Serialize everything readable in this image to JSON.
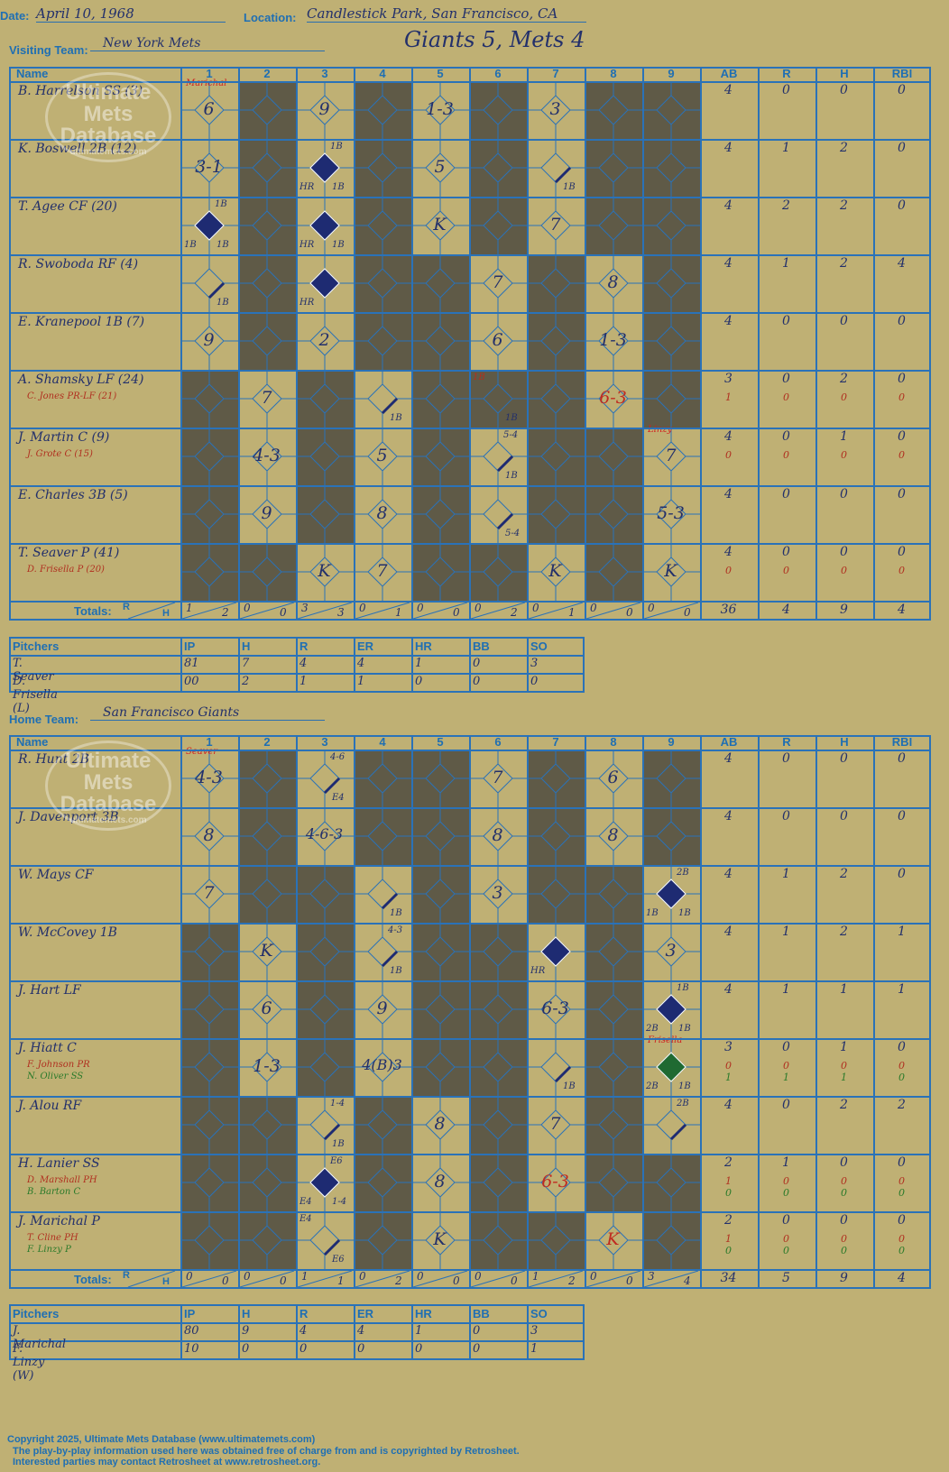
{
  "header": {
    "date_label": "Date:",
    "date_value": "April 10, 1968",
    "location_label": "Location:",
    "location_value": "Candlestick Park, San Francisco, CA",
    "visiting_label": "Visiting Team:",
    "visiting_value": "New York Mets",
    "score_title": "Giants 5, Mets 4",
    "home_label": "Home Team:",
    "home_value": "San Francisco Giants"
  },
  "columns": {
    "name": "Name",
    "innings": [
      "1",
      "2",
      "3",
      "4",
      "5",
      "6",
      "7",
      "8",
      "9"
    ],
    "stats": [
      "AB",
      "R",
      "H",
      "RBI"
    ],
    "totals_label": "Totals:",
    "r_label": "R",
    "h_label": "H"
  },
  "watermark": {
    "line1": "Ultimate",
    "line2": "Mets",
    "line3": "Database",
    "url": "ultimatemets.com"
  },
  "visitors": {
    "players": [
      {
        "name": "B. Harrelson SS (3)",
        "subs": [],
        "stats": [
          "4",
          "0",
          "0",
          "0"
        ]
      },
      {
        "name": "K. Boswell 2B (12)",
        "subs": [],
        "stats": [
          "4",
          "1",
          "2",
          "0"
        ]
      },
      {
        "name": "T. Agee CF (20)",
        "subs": [],
        "stats": [
          "4",
          "2",
          "2",
          "0"
        ]
      },
      {
        "name": "R. Swoboda RF (4)",
        "subs": [],
        "stats": [
          "4",
          "1",
          "2",
          "4"
        ]
      },
      {
        "name": "E. Kranepool 1B (7)",
        "subs": [],
        "stats": [
          "4",
          "0",
          "0",
          "0"
        ]
      },
      {
        "name": "A. Shamsky LF (24)",
        "subs": [
          {
            "name": "C. Jones PR-LF (21)",
            "stats": [
              "1",
              "0",
              "0",
              "0"
            ],
            "color": "#b03020"
          }
        ],
        "stats": [
          "3",
          "0",
          "2",
          "0"
        ]
      },
      {
        "name": "J. Martin C (9)",
        "subs": [
          {
            "name": "J. Grote C (15)",
            "stats": [
              "0",
              "0",
              "0",
              "0"
            ],
            "color": "#b03020"
          }
        ],
        "stats": [
          "4",
          "0",
          "1",
          "0"
        ]
      },
      {
        "name": "E. Charles 3B (5)",
        "subs": [],
        "stats": [
          "4",
          "0",
          "0",
          "0"
        ]
      },
      {
        "name": "T. Seaver P (41)",
        "subs": [
          {
            "name": "D. Frisella P (20)",
            "stats": [
              "0",
              "0",
              "0",
              "0"
            ],
            "color": "#b03020"
          }
        ],
        "stats": [
          "4",
          "0",
          "0",
          "0"
        ]
      }
    ],
    "plays": [
      {
        "row": 0,
        "inn": 1,
        "text": "6"
      },
      {
        "row": 0,
        "inn": 3,
        "text": "9"
      },
      {
        "row": 0,
        "inn": 5,
        "text": "1-3"
      },
      {
        "row": 0,
        "inn": 7,
        "text": "3"
      },
      {
        "row": 1,
        "inn": 1,
        "text": "3-1"
      },
      {
        "row": 1,
        "inn": 5,
        "text": "5"
      },
      {
        "row": 2,
        "inn": 5,
        "text": "K"
      },
      {
        "row": 2,
        "inn": 7,
        "text": "7"
      },
      {
        "row": 3,
        "inn": 6,
        "text": "7"
      },
      {
        "row": 3,
        "inn": 8,
        "text": "8"
      },
      {
        "row": 4,
        "inn": 1,
        "text": "9"
      },
      {
        "row": 4,
        "inn": 3,
        "text": "2"
      },
      {
        "row": 4,
        "inn": 6,
        "text": "6"
      },
      {
        "row": 4,
        "inn": 8,
        "text": "1-3"
      },
      {
        "row": 5,
        "inn": 2,
        "text": "7"
      },
      {
        "row": 5,
        "inn": 8,
        "text": "6-3"
      },
      {
        "row": 6,
        "inn": 2,
        "text": "4-3"
      },
      {
        "row": 6,
        "inn": 4,
        "text": "5"
      },
      {
        "row": 6,
        "inn": 9,
        "text": "7"
      },
      {
        "row": 7,
        "inn": 2,
        "text": "9"
      },
      {
        "row": 7,
        "inn": 4,
        "text": "8"
      },
      {
        "row": 7,
        "inn": 9,
        "text": "5-3"
      },
      {
        "row": 8,
        "inn": 3,
        "text": "K"
      },
      {
        "row": 8,
        "inn": 4,
        "text": "7"
      },
      {
        "row": 8,
        "inn": 7,
        "text": "K"
      },
      {
        "row": 8,
        "inn": 9,
        "text": "K"
      }
    ],
    "runs": [
      {
        "row": 1,
        "inn": 3
      },
      {
        "row": 2,
        "inn": 1
      },
      {
        "row": 2,
        "inn": 3
      },
      {
        "row": 3,
        "inn": 3
      }
    ],
    "singles": [
      {
        "row": 1,
        "inn": 7
      },
      {
        "row": 3,
        "inn": 1
      },
      {
        "row": 5,
        "inn": 4
      },
      {
        "row": 6,
        "inn": 6
      },
      {
        "row": 7,
        "inn": 6
      }
    ],
    "notes": [
      {
        "row": 0,
        "inn": 1,
        "text": "Marichal",
        "pos": "top",
        "color": "#d02020"
      },
      {
        "row": 1,
        "inn": 3,
        "text": "1B",
        "pos": "tr"
      },
      {
        "row": 1,
        "inn": 3,
        "text": "HR",
        "pos": "bl"
      },
      {
        "row": 1,
        "inn": 3,
        "text": "1B",
        "pos": "br"
      },
      {
        "row": 1,
        "inn": 7,
        "text": "1B",
        "pos": "br"
      },
      {
        "row": 2,
        "inn": 1,
        "text": "1B",
        "pos": "tr"
      },
      {
        "row": 2,
        "inn": 1,
        "text": "1B",
        "pos": "bl"
      },
      {
        "row": 2,
        "inn": 1,
        "text": "1B",
        "pos": "br"
      },
      {
        "row": 2,
        "inn": 3,
        "text": "HR",
        "pos": "bl"
      },
      {
        "row": 2,
        "inn": 3,
        "text": "1B",
        "pos": "br"
      },
      {
        "row": 3,
        "inn": 1,
        "text": "1B",
        "pos": "br"
      },
      {
        "row": 3,
        "inn": 3,
        "text": "HR",
        "pos": "bl"
      },
      {
        "row": 5,
        "inn": 4,
        "text": "1B",
        "pos": "br"
      },
      {
        "row": 5,
        "inn": 6,
        "text": "1B",
        "pos": "tl",
        "color": "#b03020"
      },
      {
        "row": 5,
        "inn": 6,
        "text": "1B",
        "pos": "br"
      },
      {
        "row": 6,
        "inn": 6,
        "text": "5-4",
        "pos": "tr"
      },
      {
        "row": 6,
        "inn": 6,
        "text": "1B",
        "pos": "br"
      },
      {
        "row": 6,
        "inn": 9,
        "text": "Linzy",
        "pos": "top",
        "color": "#d02020"
      },
      {
        "row": 7,
        "inn": 6,
        "text": "5-4",
        "pos": "br"
      }
    ],
    "totals": [
      [
        "1",
        "2"
      ],
      [
        "0",
        "0"
      ],
      [
        "3",
        "3"
      ],
      [
        "0",
        "1"
      ],
      [
        "0",
        "0"
      ],
      [
        "0",
        "2"
      ],
      [
        "0",
        "1"
      ],
      [
        "0",
        "0"
      ],
      [
        "0",
        "0"
      ]
    ],
    "totals_stats": [
      "36",
      "4",
      "9",
      "4"
    ],
    "pitchers_header": [
      "Pitchers",
      "IP",
      "H",
      "R",
      "ER",
      "HR",
      "BB",
      "SO"
    ],
    "pitchers": [
      [
        "T. Seaver",
        "81",
        "7",
        "4",
        "4",
        "1",
        "0",
        "3"
      ],
      [
        "D. Frisella (L)",
        "00",
        "2",
        "1",
        "1",
        "0",
        "0",
        "0"
      ]
    ]
  },
  "home": {
    "players": [
      {
        "name": "R. Hunt 2B",
        "subs": [],
        "stats": [
          "4",
          "0",
          "0",
          "0"
        ]
      },
      {
        "name": "J. Davenport 3B",
        "subs": [],
        "stats": [
          "4",
          "0",
          "0",
          "0"
        ]
      },
      {
        "name": "W. Mays CF",
        "subs": [],
        "stats": [
          "4",
          "1",
          "2",
          "0"
        ]
      },
      {
        "name": "W. McCovey 1B",
        "subs": [],
        "stats": [
          "4",
          "1",
          "2",
          "1"
        ]
      },
      {
        "name": "J. Hart LF",
        "subs": [],
        "stats": [
          "4",
          "1",
          "1",
          "1"
        ]
      },
      {
        "name": "J. Hiatt C",
        "subs": [
          {
            "name": "F. Johnson PR",
            "stats": [
              "0",
              "0",
              "0",
              "0"
            ],
            "color": "#b03020"
          },
          {
            "name": "N. Oliver SS",
            "stats": [
              "1",
              "1",
              "1",
              "0"
            ],
            "color": "#2a7a2a"
          }
        ],
        "stats": [
          "3",
          "0",
          "1",
          "0"
        ]
      },
      {
        "name": "J. Alou RF",
        "subs": [],
        "stats": [
          "4",
          "0",
          "2",
          "2"
        ]
      },
      {
        "name": "H. Lanier SS",
        "subs": [
          {
            "name": "D. Marshall PH",
            "stats": [
              "1",
              "0",
              "0",
              "0"
            ],
            "color": "#b03020"
          },
          {
            "name": "B. Barton C",
            "stats": [
              "0",
              "0",
              "0",
              "0"
            ],
            "color": "#2a7a2a"
          }
        ],
        "stats": [
          "2",
          "1",
          "0",
          "0"
        ]
      },
      {
        "name": "J. Marichal P",
        "subs": [
          {
            "name": "T. Cline PH",
            "stats": [
              "1",
              "0",
              "0",
              "0"
            ],
            "color": "#b03020"
          },
          {
            "name": "F. Linzy P",
            "stats": [
              "0",
              "0",
              "0",
              "0"
            ],
            "color": "#2a7a2a"
          }
        ],
        "stats": [
          "2",
          "0",
          "0",
          "0"
        ]
      }
    ],
    "plays": [
      {
        "row": 0,
        "inn": 1,
        "text": "4-3"
      },
      {
        "row": 0,
        "inn": 6,
        "text": "7"
      },
      {
        "row": 0,
        "inn": 8,
        "text": "6"
      },
      {
        "row": 1,
        "inn": 1,
        "text": "8"
      },
      {
        "row": 1,
        "inn": 3,
        "text": "4-6-3"
      },
      {
        "row": 1,
        "inn": 6,
        "text": "8"
      },
      {
        "row": 1,
        "inn": 8,
        "text": "8"
      },
      {
        "row": 2,
        "inn": 1,
        "text": "7"
      },
      {
        "row": 2,
        "inn": 6,
        "text": "3"
      },
      {
        "row": 3,
        "inn": 2,
        "text": "K"
      },
      {
        "row": 3,
        "inn": 9,
        "text": "3"
      },
      {
        "row": 4,
        "inn": 2,
        "text": "6"
      },
      {
        "row": 4,
        "inn": 4,
        "text": "9"
      },
      {
        "row": 4,
        "inn": 7,
        "text": "6-3"
      },
      {
        "row": 5,
        "inn": 2,
        "text": "1-3"
      },
      {
        "row": 5,
        "inn": 4,
        "text": "4(B)3"
      },
      {
        "row": 6,
        "inn": 5,
        "text": "8"
      },
      {
        "row": 6,
        "inn": 7,
        "text": "7"
      },
      {
        "row": 7,
        "inn": 5,
        "text": "8"
      },
      {
        "row": 7,
        "inn": 7,
        "text": "6-3"
      },
      {
        "row": 8,
        "inn": 5,
        "text": "K"
      },
      {
        "row": 8,
        "inn": 8,
        "text": "K"
      }
    ],
    "runs": [
      {
        "row": 2,
        "inn": 9
      },
      {
        "row": 3,
        "inn": 7
      },
      {
        "row": 4,
        "inn": 9
      },
      {
        "row": 5,
        "inn": 9,
        "color": "#1f6a32"
      },
      {
        "row": 7,
        "inn": 3
      }
    ],
    "singles": [
      {
        "row": 0,
        "inn": 3
      },
      {
        "row": 2,
        "inn": 4
      },
      {
        "row": 3,
        "inn": 4
      },
      {
        "row": 5,
        "inn": 7
      },
      {
        "row": 6,
        "inn": 3
      },
      {
        "row": 6,
        "inn": 9
      },
      {
        "row": 8,
        "inn": 3
      }
    ],
    "notes": [
      {
        "row": 0,
        "inn": 1,
        "text": "Seaver",
        "pos": "top",
        "color": "#d02020"
      },
      {
        "row": 0,
        "inn": 3,
        "text": "4-6",
        "pos": "tr"
      },
      {
        "row": 0,
        "inn": 3,
        "text": "E4",
        "pos": "br"
      },
      {
        "row": 2,
        "inn": 4,
        "text": "1B",
        "pos": "br"
      },
      {
        "row": 2,
        "inn": 9,
        "text": "2B",
        "pos": "tr"
      },
      {
        "row": 2,
        "inn": 9,
        "text": "1B",
        "pos": "bl"
      },
      {
        "row": 2,
        "inn": 9,
        "text": "1B",
        "pos": "br"
      },
      {
        "row": 3,
        "inn": 4,
        "text": "4-3",
        "pos": "tr"
      },
      {
        "row": 3,
        "inn": 4,
        "text": "1B",
        "pos": "br"
      },
      {
        "row": 3,
        "inn": 7,
        "text": "HR",
        "pos": "bl"
      },
      {
        "row": 4,
        "inn": 9,
        "text": "1B",
        "pos": "tr"
      },
      {
        "row": 4,
        "inn": 9,
        "text": "2B",
        "pos": "bl"
      },
      {
        "row": 4,
        "inn": 9,
        "text": "1B",
        "pos": "br"
      },
      {
        "row": 5,
        "inn": 7,
        "text": "1B",
        "pos": "br"
      },
      {
        "row": 5,
        "inn": 9,
        "text": "Frisella",
        "pos": "top",
        "color": "#d02020"
      },
      {
        "row": 5,
        "inn": 9,
        "text": "2B",
        "pos": "bl"
      },
      {
        "row": 5,
        "inn": 9,
        "text": "1B",
        "pos": "br"
      },
      {
        "row": 6,
        "inn": 3,
        "text": "1-4",
        "pos": "tr"
      },
      {
        "row": 6,
        "inn": 3,
        "text": "1B",
        "pos": "br"
      },
      {
        "row": 6,
        "inn": 9,
        "text": "2B",
        "pos": "tr"
      },
      {
        "row": 7,
        "inn": 3,
        "text": "E6",
        "pos": "tr"
      },
      {
        "row": 7,
        "inn": 3,
        "text": "E4",
        "pos": "bl"
      },
      {
        "row": 7,
        "inn": 3,
        "text": "1-4",
        "pos": "br"
      },
      {
        "row": 8,
        "inn": 3,
        "text": "E4",
        "pos": "tl"
      },
      {
        "row": 8,
        "inn": 3,
        "text": "E6",
        "pos": "br"
      }
    ],
    "totals": [
      [
        "0",
        "0"
      ],
      [
        "0",
        "0"
      ],
      [
        "1",
        "1"
      ],
      [
        "0",
        "2"
      ],
      [
        "0",
        "0"
      ],
      [
        "0",
        "0"
      ],
      [
        "1",
        "2"
      ],
      [
        "0",
        "0"
      ],
      [
        "3",
        "4"
      ]
    ],
    "totals_stats": [
      "34",
      "5",
      "9",
      "4"
    ],
    "pitchers_header": [
      "Pitchers",
      "IP",
      "H",
      "R",
      "ER",
      "HR",
      "BB",
      "SO"
    ],
    "pitchers": [
      [
        "J. Marichal",
        "80",
        "9",
        "4",
        "4",
        "1",
        "0",
        "3"
      ],
      [
        "F. Linzy (W)",
        "10",
        "0",
        "0",
        "0",
        "0",
        "0",
        "1"
      ]
    ]
  },
  "footer": {
    "line1": "Copyright 2025, Ultimate Mets Database (www.ultimatemets.com)",
    "line2": "The play-by-play information used here was obtained free of charge from and is copyrighted by Retrosheet.",
    "line3": "Interested parties may contact Retrosheet at www.retrosheet.org."
  },
  "colors": {
    "background": "#bfb074",
    "line": "#2a72b8",
    "shade": "#5f5a47",
    "run": "#1e2b72",
    "note_red": "#d02020"
  }
}
